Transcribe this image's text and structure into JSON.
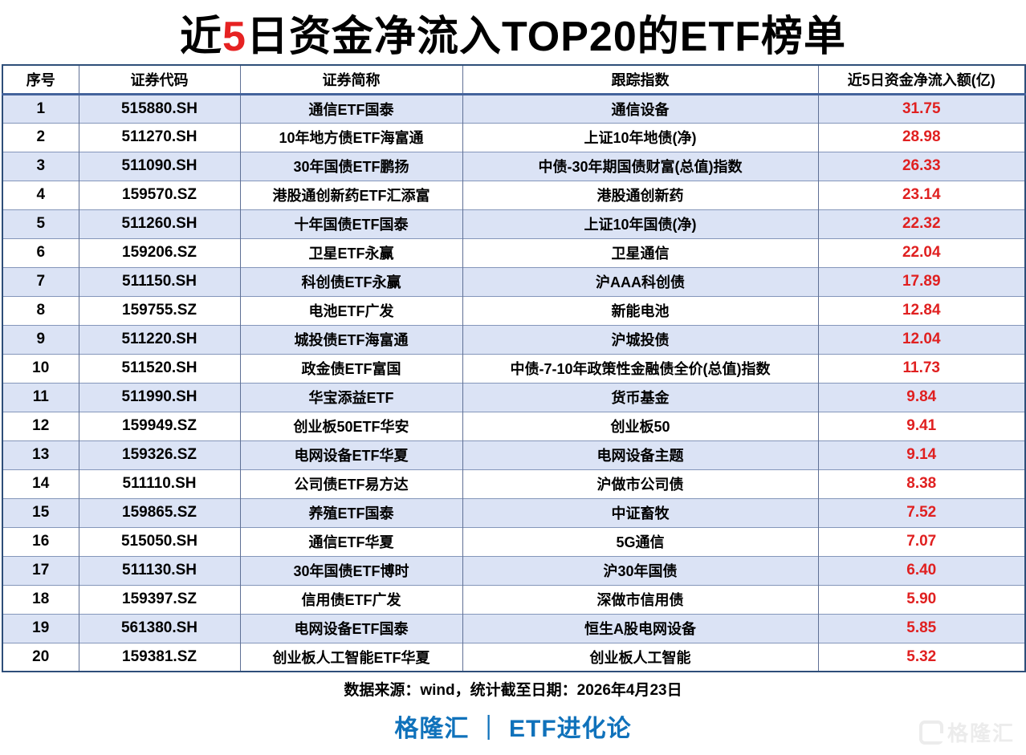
{
  "title": {
    "prefix": "近",
    "highlight": "5",
    "suffix": "日资金净流入TOP20的ETF榜单"
  },
  "colors": {
    "title_highlight": "#e62222",
    "value_red": "#e02020",
    "brand_blue": "#1072bb",
    "row_alt_blue": "#dbe3f5",
    "border_navy": "#2e4e79"
  },
  "chart_data": {
    "type": "table",
    "title": "近5日资金净流入TOP20的ETF榜单",
    "columns": [
      "序号",
      "证券代码",
      "证券简称",
      "跟踪指数",
      "近5日资金净流入额(亿)"
    ],
    "rows": [
      [
        "1",
        "515880.SH",
        "通信ETF国泰",
        "通信设备",
        "31.75"
      ],
      [
        "2",
        "511270.SH",
        "10年地方债ETF海富通",
        "上证10年地债(净)",
        "28.98"
      ],
      [
        "3",
        "511090.SH",
        "30年国债ETF鹏扬",
        "中债-30年期国债财富(总值)指数",
        "26.33"
      ],
      [
        "4",
        "159570.SZ",
        "港股通创新药ETF汇添富",
        "港股通创新药",
        "23.14"
      ],
      [
        "5",
        "511260.SH",
        "十年国债ETF国泰",
        "上证10年国债(净)",
        "22.32"
      ],
      [
        "6",
        "159206.SZ",
        "卫星ETF永赢",
        "卫星通信",
        "22.04"
      ],
      [
        "7",
        "511150.SH",
        "科创债ETF永赢",
        "沪AAA科创债",
        "17.89"
      ],
      [
        "8",
        "159755.SZ",
        "电池ETF广发",
        "新能电池",
        "12.84"
      ],
      [
        "9",
        "511220.SH",
        "城投债ETF海富通",
        "沪城投债",
        "12.04"
      ],
      [
        "10",
        "511520.SH",
        "政金债ETF富国",
        "中债-7-10年政策性金融债全价(总值)指数",
        "11.73"
      ],
      [
        "11",
        "511990.SH",
        "华宝添益ETF",
        "货币基金",
        "9.84"
      ],
      [
        "12",
        "159949.SZ",
        "创业板50ETF华安",
        "创业板50",
        "9.41"
      ],
      [
        "13",
        "159326.SZ",
        "电网设备ETF华夏",
        "电网设备主题",
        "9.14"
      ],
      [
        "14",
        "511110.SH",
        "公司债ETF易方达",
        "沪做市公司债",
        "8.38"
      ],
      [
        "15",
        "159865.SZ",
        "养殖ETF国泰",
        "中证畜牧",
        "7.52"
      ],
      [
        "16",
        "515050.SH",
        "通信ETF华夏",
        "5G通信",
        "7.07"
      ],
      [
        "17",
        "511130.SH",
        "30年国债ETF博时",
        "沪30年国债",
        "6.40"
      ],
      [
        "18",
        "159397.SZ",
        "信用债ETF广发",
        "深做市信用债",
        "5.90"
      ],
      [
        "19",
        "561380.SH",
        "电网设备ETF国泰",
        "恒生A股电网设备",
        "5.85"
      ],
      [
        "20",
        "159381.SZ",
        "创业板人工智能ETF华夏",
        "创业板人工智能",
        "5.32"
      ]
    ]
  },
  "table": {
    "headers": [
      "序号",
      "证券代码",
      "证券简称",
      "跟踪指数",
      "近5日资金净流入额(亿)"
    ]
  },
  "footer": {
    "source": "数据来源：wind，统计截至日期：2026年4月23日",
    "brand": "格隆汇 ｜ ETF进化论",
    "watermark": "格隆汇"
  }
}
